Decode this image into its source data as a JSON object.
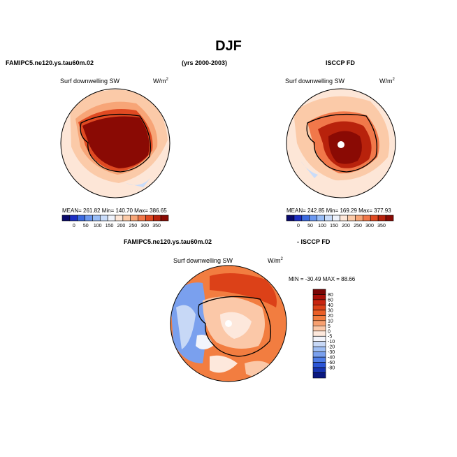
{
  "page": {
    "title": "DJF",
    "left_model_title": "FAMIPC5.ne120.ys.tau60m.02",
    "years": "(yrs 2000-2003)",
    "right_obs_title": "ISCCP FD",
    "diff_model_title": "FAMIPC5.ne120.ys.tau60m.02",
    "diff_obs_title": "- ISCCP FD"
  },
  "panels": {
    "model": {
      "varname": "Surf downwelling SW",
      "units": "W/m",
      "units_exp": "2",
      "stats": "MEAN= 261.82   Min= 140.70   Max= 386.65"
    },
    "obs": {
      "varname": "Surf downwelling SW",
      "units": "W/m",
      "units_exp": "2",
      "stats": "MEAN= 242.85   Min= 169.29   Max= 377.93"
    },
    "diff": {
      "varname": "Surf downwelling SW",
      "units": "W/m",
      "units_exp": "2",
      "minmax": "MIN = -30.49  MAX =  88.66"
    }
  },
  "chart_data": [
    {
      "type": "heatmap",
      "title": "Surf downwelling SW",
      "projection": "south polar stereographic",
      "units": "W/m2",
      "stats": {
        "mean": 261.82,
        "min": 140.7,
        "max": 386.65
      },
      "colorbar": {
        "orientation": "horizontal",
        "levels": [
          0,
          50,
          100,
          150,
          200,
          250,
          300,
          350
        ],
        "colors": [
          "#08086b",
          "#1c2fc4",
          "#3d6be0",
          "#6b98f0",
          "#98bdf7",
          "#c9dcfa",
          "#eef2fb",
          "#fde6d7",
          "#fbcaa8",
          "#f7a577",
          "#f1784a",
          "#e04a22",
          "#b8220c",
          "#8a0a04"
        ]
      }
    },
    {
      "type": "heatmap",
      "title": "Surf downwelling SW",
      "projection": "south polar stereographic",
      "units": "W/m2",
      "stats": {
        "mean": 242.85,
        "min": 169.29,
        "max": 377.93
      },
      "colorbar": {
        "orientation": "horizontal",
        "levels": [
          0,
          50,
          100,
          150,
          200,
          250,
          300,
          350
        ],
        "colors": [
          "#08086b",
          "#1c2fc4",
          "#3d6be0",
          "#6b98f0",
          "#98bdf7",
          "#c9dcfa",
          "#eef2fb",
          "#fde6d7",
          "#fbcaa8",
          "#f7a577",
          "#f1784a",
          "#e04a22",
          "#b8220c",
          "#8a0a04"
        ]
      }
    },
    {
      "type": "heatmap",
      "title": "Surf downwelling SW",
      "projection": "south polar stereographic",
      "units": "W/m2",
      "stats": {
        "min": -30.49,
        "max": 88.66
      },
      "colorbar": {
        "orientation": "vertical",
        "levels": [
          80,
          60,
          40,
          30,
          20,
          10,
          5,
          0,
          -5,
          -10,
          -20,
          -30,
          -40,
          -60,
          -80
        ],
        "colors": [
          "#7a0505",
          "#a80f08",
          "#c82510",
          "#dc4118",
          "#ea5e26",
          "#f27d40",
          "#f7a070",
          "#fbc8a8",
          "#fde8dc",
          "#f2f4fb",
          "#c7d8f6",
          "#9fbef3",
          "#7aa0ee",
          "#4f7de8",
          "#2b55d6",
          "#1633b0",
          "#0a1880"
        ]
      }
    }
  ]
}
